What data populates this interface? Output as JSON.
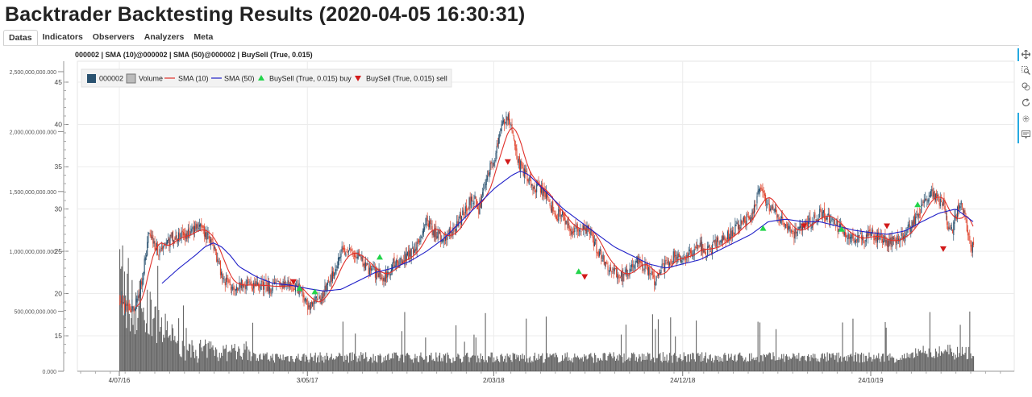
{
  "page": {
    "title": "Backtrader Backtesting Results (2020-04-05 16:30:31)"
  },
  "tabs": [
    "Datas",
    "Indicators",
    "Observers",
    "Analyzers",
    "Meta"
  ],
  "active_tab": "Datas",
  "toolbar": {
    "tools": [
      {
        "name": "pan-tool-icon",
        "active": true
      },
      {
        "name": "box-zoom-tool-icon",
        "active": false
      },
      {
        "name": "wheel-zoom-tool-icon",
        "active": false
      },
      {
        "name": "reset-tool-icon",
        "active": false
      },
      {
        "name": "crosshair-tool-icon",
        "active": true
      },
      {
        "name": "hover-tool-icon",
        "active": false
      }
    ]
  },
  "chart_data": {
    "type": "line",
    "title": "000002 | SMA (10)@000002 | SMA (50)@000002 | BuySell (True, 0.015)",
    "x_tick_labels": [
      "4/07/16",
      "3/05/17",
      "2/03/18",
      "24/12/18",
      "24/10/19"
    ],
    "x_ticks": [
      0.0,
      0.215,
      0.428,
      0.644,
      0.859
    ],
    "price_axis": {
      "ylim": [
        12,
        46
      ],
      "ticks": [
        15,
        20,
        25,
        30,
        35,
        40,
        45
      ]
    },
    "volume_axis": {
      "ylim": [
        0,
        2500000000
      ],
      "ticks": [
        "0.000",
        "500,000,000.000",
        "1,000,000,000.000",
        "1,500,000,000.000",
        "2,000,000,000.000",
        "2,500,000,000.000"
      ]
    },
    "grid": true,
    "legend_position": "top-left",
    "colors": {
      "up": "#2a5270",
      "down": "#e0462f",
      "sma10": "#e0302a",
      "sma50": "#1f1fc8",
      "buy": "#22d44a",
      "sell": "#d21a1a",
      "volume": "#555555"
    },
    "series": [
      {
        "name": "000002"
      },
      {
        "name": "Volume"
      },
      {
        "name": "SMA (10)"
      },
      {
        "name": "SMA (50)"
      },
      {
        "name": "BuySell (True, 0.015) buy"
      },
      {
        "name": "BuySell (True, 0.015) sell"
      }
    ],
    "price_keypoints": [
      [
        0.0,
        19.5
      ],
      [
        0.012,
        17.8
      ],
      [
        0.02,
        18.8
      ],
      [
        0.03,
        24.0
      ],
      [
        0.034,
        27.5
      ],
      [
        0.045,
        25.0
      ],
      [
        0.06,
        26.5
      ],
      [
        0.08,
        27.0
      ],
      [
        0.09,
        28.0
      ],
      [
        0.1,
        27.0
      ],
      [
        0.11,
        25.8
      ],
      [
        0.12,
        22.0
      ],
      [
        0.13,
        21.0
      ],
      [
        0.16,
        21.0
      ],
      [
        0.18,
        20.8
      ],
      [
        0.2,
        21.0
      ],
      [
        0.21,
        20.6
      ],
      [
        0.215,
        19.8
      ],
      [
        0.22,
        18.6
      ],
      [
        0.23,
        19.0
      ],
      [
        0.24,
        20.2
      ],
      [
        0.25,
        22.5
      ],
      [
        0.26,
        25.0
      ],
      [
        0.28,
        24.5
      ],
      [
        0.29,
        23.0
      ],
      [
        0.3,
        22.5
      ],
      [
        0.31,
        22.0
      ],
      [
        0.32,
        23.5
      ],
      [
        0.33,
        24.0
      ],
      [
        0.345,
        25.0
      ],
      [
        0.36,
        28.5
      ],
      [
        0.37,
        27.0
      ],
      [
        0.38,
        26.5
      ],
      [
        0.395,
        28.0
      ],
      [
        0.405,
        30.0
      ],
      [
        0.415,
        31.5
      ],
      [
        0.42,
        29.5
      ],
      [
        0.43,
        34.0
      ],
      [
        0.44,
        36.5
      ],
      [
        0.45,
        40.5
      ],
      [
        0.455,
        41.0
      ],
      [
        0.46,
        39.0
      ],
      [
        0.465,
        36.0
      ],
      [
        0.47,
        35.0
      ],
      [
        0.48,
        33.0
      ],
      [
        0.49,
        32.5
      ],
      [
        0.5,
        31.5
      ],
      [
        0.51,
        29.5
      ],
      [
        0.52,
        29.0
      ],
      [
        0.53,
        27.0
      ],
      [
        0.54,
        28.0
      ],
      [
        0.55,
        27.5
      ],
      [
        0.56,
        25.0
      ],
      [
        0.57,
        23.5
      ],
      [
        0.58,
        22.5
      ],
      [
        0.59,
        22.0
      ],
      [
        0.6,
        23.0
      ],
      [
        0.61,
        24.0
      ],
      [
        0.62,
        22.5
      ],
      [
        0.625,
        21.5
      ],
      [
        0.64,
        23.5
      ],
      [
        0.65,
        24.5
      ],
      [
        0.66,
        24.0
      ],
      [
        0.67,
        25.0
      ],
      [
        0.68,
        25.5
      ],
      [
        0.69,
        25.0
      ],
      [
        0.7,
        26.0
      ],
      [
        0.71,
        26.5
      ],
      [
        0.72,
        27.5
      ],
      [
        0.73,
        28.5
      ],
      [
        0.74,
        29.0
      ],
      [
        0.745,
        31.0
      ],
      [
        0.75,
        32.5
      ],
      [
        0.76,
        30.5
      ],
      [
        0.77,
        29.5
      ],
      [
        0.78,
        28.0
      ],
      [
        0.79,
        27.0
      ],
      [
        0.8,
        28.0
      ],
      [
        0.81,
        28.5
      ],
      [
        0.82,
        29.5
      ],
      [
        0.83,
        29.0
      ],
      [
        0.84,
        28.0
      ],
      [
        0.85,
        27.0
      ],
      [
        0.86,
        26.5
      ],
      [
        0.87,
        26.5
      ],
      [
        0.88,
        27.0
      ],
      [
        0.89,
        26.5
      ],
      [
        0.9,
        26.0
      ],
      [
        0.91,
        26.5
      ],
      [
        0.92,
        27.0
      ],
      [
        0.93,
        28.5
      ],
      [
        0.94,
        30.5
      ],
      [
        0.95,
        32.0
      ],
      [
        0.96,
        31.0
      ],
      [
        0.965,
        30.5
      ],
      [
        0.97,
        28.0
      ],
      [
        0.975,
        27.5
      ],
      [
        0.98,
        29.5
      ],
      [
        0.985,
        30.5
      ],
      [
        0.99,
        29.5
      ],
      [
        0.995,
        26.0
      ],
      [
        1.0,
        25.5
      ]
    ],
    "sma50_keypoints": [
      [
        0.05,
        21.2
      ],
      [
        0.07,
        23.0
      ],
      [
        0.09,
        24.6
      ],
      [
        0.1,
        25.5
      ],
      [
        0.11,
        26.0
      ],
      [
        0.12,
        25.5
      ],
      [
        0.13,
        24.5
      ],
      [
        0.14,
        23.2
      ],
      [
        0.16,
        22.0
      ],
      [
        0.18,
        21.2
      ],
      [
        0.2,
        21.0
      ],
      [
        0.22,
        20.6
      ],
      [
        0.24,
        20.3
      ],
      [
        0.26,
        20.5
      ],
      [
        0.28,
        21.5
      ],
      [
        0.3,
        22.5
      ],
      [
        0.32,
        23.0
      ],
      [
        0.34,
        23.8
      ],
      [
        0.36,
        25.0
      ],
      [
        0.38,
        26.5
      ],
      [
        0.4,
        28.5
      ],
      [
        0.42,
        30.5
      ],
      [
        0.44,
        32.5
      ],
      [
        0.46,
        34.0
      ],
      [
        0.47,
        34.5
      ],
      [
        0.48,
        34.0
      ],
      [
        0.5,
        32.0
      ],
      [
        0.52,
        30.0
      ],
      [
        0.54,
        28.5
      ],
      [
        0.56,
        27.0
      ],
      [
        0.58,
        25.5
      ],
      [
        0.6,
        24.5
      ],
      [
        0.62,
        23.5
      ],
      [
        0.64,
        23.0
      ],
      [
        0.66,
        23.5
      ],
      [
        0.68,
        24.0
      ],
      [
        0.7,
        25.0
      ],
      [
        0.72,
        26.0
      ],
      [
        0.74,
        27.0
      ],
      [
        0.76,
        28.5
      ],
      [
        0.78,
        28.8
      ],
      [
        0.8,
        28.5
      ],
      [
        0.82,
        28.5
      ],
      [
        0.84,
        28.0
      ],
      [
        0.86,
        27.5
      ],
      [
        0.88,
        27.2
      ],
      [
        0.9,
        27.0
      ],
      [
        0.92,
        27.4
      ],
      [
        0.94,
        28.5
      ],
      [
        0.96,
        29.5
      ],
      [
        0.98,
        30.0
      ],
      [
        1.0,
        28.5
      ]
    ],
    "buy_signals": [
      [
        0.211,
        20.6
      ],
      [
        0.229,
        20.2
      ],
      [
        0.305,
        24.3
      ],
      [
        0.538,
        22.6
      ],
      [
        0.754,
        27.7
      ],
      [
        0.846,
        27.6
      ],
      [
        0.935,
        30.5
      ]
    ],
    "sell_signals": [
      [
        0.204,
        21.4
      ],
      [
        0.455,
        35.6
      ],
      [
        0.545,
        22.0
      ],
      [
        0.802,
        28.0
      ],
      [
        0.899,
        28.0
      ],
      [
        0.965,
        25.3
      ]
    ]
  }
}
